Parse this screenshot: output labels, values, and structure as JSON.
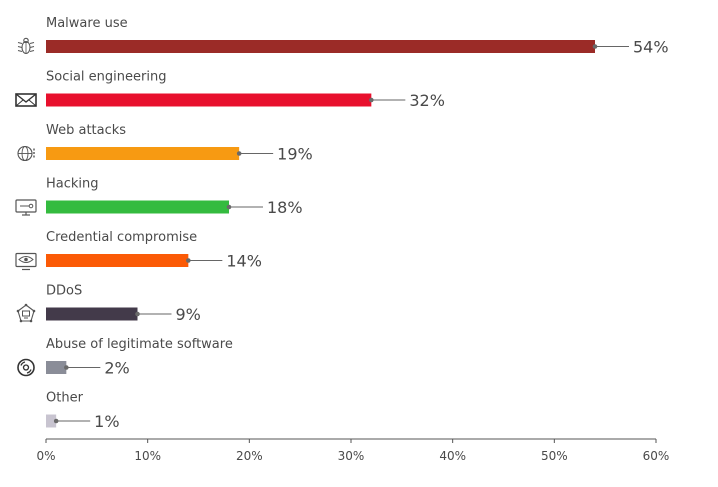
{
  "chart_data": {
    "type": "bar",
    "orientation": "horizontal",
    "categories": [
      "Malware use",
      "Social engineering",
      "Web attacks",
      "Hacking",
      "Credential compromise",
      "DDoS",
      "Abuse of legitimate software",
      "Other"
    ],
    "values": [
      54,
      32,
      19,
      18,
      14,
      9,
      2,
      1
    ],
    "value_labels": [
      "54%",
      "32%",
      "19%",
      "18%",
      "14%",
      "9%",
      "2%",
      "1%"
    ],
    "colors": [
      "#9b2b27",
      "#e8102d",
      "#f79a12",
      "#34bb3f",
      "#fb5a06",
      "#433a4a",
      "#8a8d98",
      "#c8c4d0"
    ],
    "icons": [
      "bug-icon",
      "envelope-icon",
      "globe-icon",
      "computer-icon",
      "eye-monitor-icon",
      "ddos-icon",
      "disc-icon",
      ""
    ],
    "xlim": [
      0,
      60
    ],
    "x_ticks": [
      0,
      10,
      20,
      30,
      40,
      50,
      60
    ],
    "x_tick_labels": [
      "0%",
      "10%",
      "20%",
      "30%",
      "40%",
      "50%",
      "60%"
    ],
    "title": "",
    "xlabel": "",
    "ylabel": "",
    "grid": false,
    "legend": "none"
  }
}
